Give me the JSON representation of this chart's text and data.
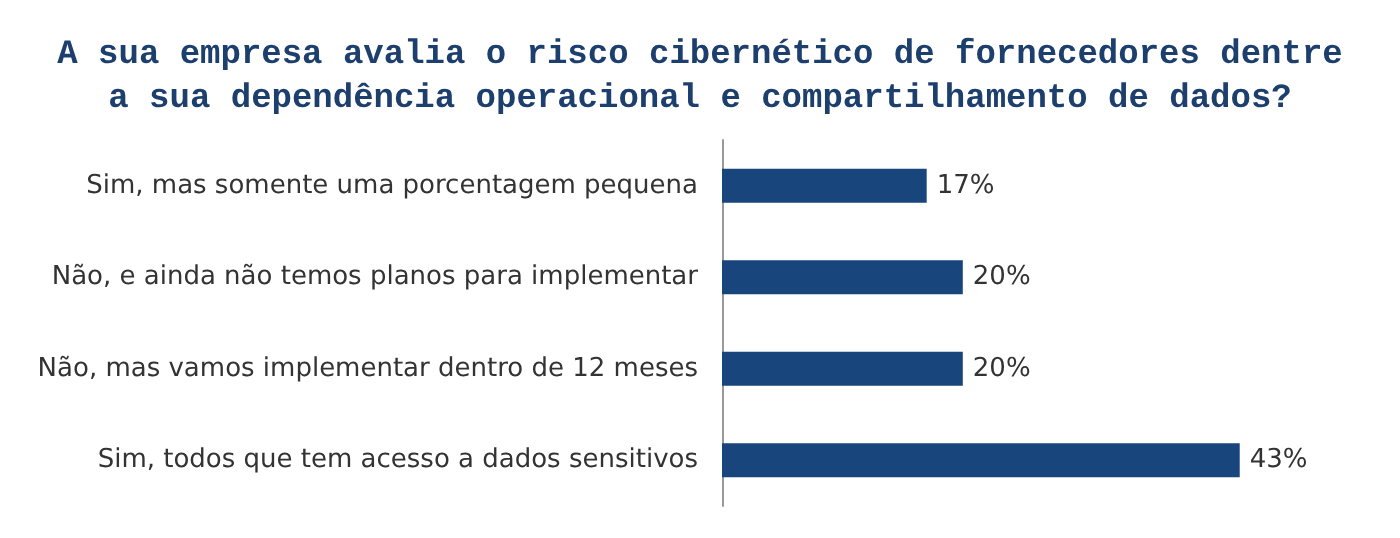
{
  "chart_data": {
    "type": "bar",
    "orientation": "horizontal",
    "title": "A sua empresa avalia o risco cibernético de fornecedores dentre\na sua dependência operacional e compartilhamento de dados?",
    "categories": [
      "Sim, mas somente uma porcentagem pequena",
      "Não, e ainda não temos planos para implementar",
      "Não, mas vamos implementar dentro de 12 meses",
      "Sim, todos que tem acesso a dados sensitivos"
    ],
    "values": [
      17,
      20,
      20,
      43
    ],
    "value_labels": [
      "17%",
      "20%",
      "20%",
      "43%"
    ],
    "color": "#17457c",
    "tick_labels": "y"
  }
}
